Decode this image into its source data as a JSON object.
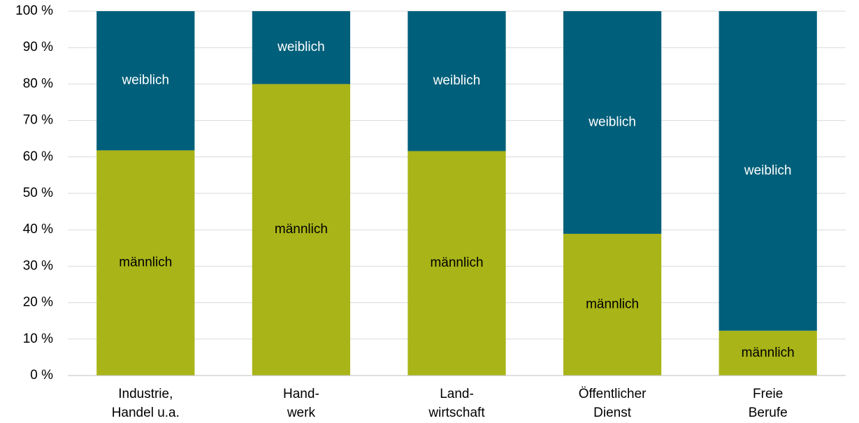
{
  "chart_data": {
    "type": "stacked_bar",
    "categories": [
      [
        "Industrie,",
        "Handel u.a."
      ],
      [
        "Hand-",
        "werk"
      ],
      [
        "Land-",
        "wirtschaft"
      ],
      [
        "Öffentlicher",
        "Dienst"
      ],
      [
        "Freie",
        "Berufe"
      ]
    ],
    "series": [
      {
        "name": "männlich",
        "color": "#a9b418",
        "label_color": "#000000",
        "values": [
          61.8,
          80,
          61.6,
          38.9,
          12.3
        ]
      },
      {
        "name": "weiblich",
        "color": "#005f7a",
        "label_color": "#ffffff",
        "values": [
          38.2,
          20,
          38.4,
          61.1,
          87.7
        ]
      }
    ],
    "ylim": [
      0,
      100
    ],
    "yticks": [
      {
        "value": 0,
        "label": "0 %"
      },
      {
        "value": 10,
        "label": "10 %"
      },
      {
        "value": 20,
        "label": "20 %"
      },
      {
        "value": 30,
        "label": "30 %"
      },
      {
        "value": 40,
        "label": "40 %"
      },
      {
        "value": 50,
        "label": "50 %"
      },
      {
        "value": 60,
        "label": "60 %"
      },
      {
        "value": 70,
        "label": "70 %"
      },
      {
        "value": 80,
        "label": "80 %"
      },
      {
        "value": 90,
        "label": "90 %"
      },
      {
        "value": 100,
        "label": "100 %"
      }
    ],
    "grid": true
  }
}
